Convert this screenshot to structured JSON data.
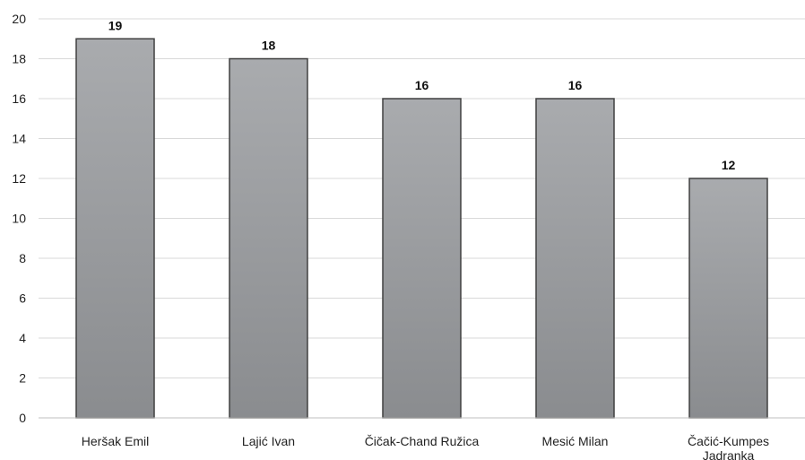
{
  "chart_data": {
    "type": "bar",
    "title": "",
    "xlabel": "",
    "ylabel": "",
    "categories": [
      [
        "Heršak Emil"
      ],
      [
        "Lajić Ivan"
      ],
      [
        "Čičak-Chand Ružica"
      ],
      [
        "Mesić Milan"
      ],
      [
        "Čačić-Kumpes",
        "Jadranka"
      ]
    ],
    "values": [
      19,
      18,
      16,
      16,
      12
    ],
    "data_labels": [
      "19",
      "18",
      "16",
      "16",
      "12"
    ],
    "ylim": [
      0,
      20
    ],
    "yticks": [
      0,
      2,
      4,
      6,
      8,
      10,
      12,
      14,
      16,
      18,
      20
    ],
    "ytick_labels": [
      "0",
      "2",
      "4",
      "6",
      "8",
      "10",
      "12",
      "14",
      "16",
      "18",
      "20"
    ],
    "grid": true,
    "legend": "none",
    "colors": {
      "bar_top": "#a9abae",
      "bar_bottom": "#8a8c8f",
      "bar_stroke": "#404040",
      "grid": "#d9d9d9",
      "axis": "#bfbfbf"
    }
  }
}
